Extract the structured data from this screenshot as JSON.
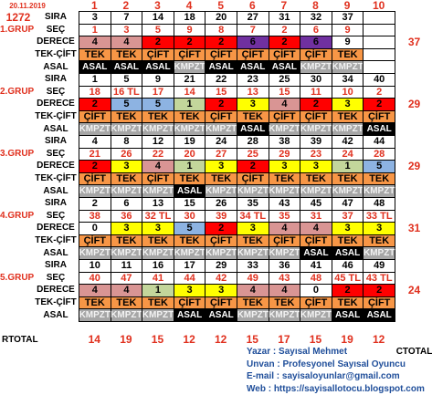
{
  "date": "20.11.2019",
  "code": "1272",
  "columns": [
    1,
    2,
    3,
    4,
    5,
    6,
    7,
    8,
    9,
    10
  ],
  "row_labels": {
    "sira": "SIRA",
    "sec": "SEÇ",
    "derece": "DERECE",
    "tek_cift": "TEK-ÇİFT",
    "asal": "ASAL"
  },
  "derece_colors": {
    "0": "#ffffff",
    "1": "#c3d69b",
    "2": "#ff0000",
    "3": "#ffff00",
    "4": "#d99594",
    "5": "#8db3e2",
    "6": "#7030a0",
    "9": "#ffffff"
  },
  "tek_cift_color": "#f79646",
  "asal_styles": {
    "ASAL": {
      "bg": "#000000",
      "fg": "#ffffff"
    },
    "KMPZT": {
      "bg": "#a6a6a6",
      "fg": "#f2f2f2"
    }
  },
  "groups": [
    {
      "label": "1.GRUP",
      "sira": [
        3,
        7,
        14,
        18,
        20,
        27,
        31,
        32,
        37
      ],
      "sec": [
        1,
        3,
        5,
        9,
        8,
        7,
        2,
        6,
        9
      ],
      "derece": [
        4,
        4,
        2,
        2,
        2,
        6,
        2,
        6,
        9
      ],
      "tek_cift": [
        "TEK",
        "TEK",
        "ÇİFT",
        "ÇİFT",
        "ÇİFT",
        "ÇİFT",
        "ÇİFT",
        "ÇİFT",
        "TEK"
      ],
      "asal": [
        "ASAL",
        "ASAL",
        "ASAL",
        "KMPZT",
        "ASAL",
        "ASAL",
        "ASAL",
        "KMPZT",
        "KMPZT"
      ],
      "total": 37
    },
    {
      "label": "2.GRUP",
      "sira": [
        1,
        5,
        9,
        21,
        22,
        23,
        25,
        30,
        34,
        40
      ],
      "sec": [
        18,
        "16 TL",
        17,
        14,
        15,
        13,
        15,
        11,
        10,
        2
      ],
      "derece": [
        2,
        5,
        5,
        1,
        2,
        3,
        4,
        2,
        3,
        2
      ],
      "tek_cift": [
        "ÇİFT",
        "TEK",
        "TEK",
        "TEK",
        "ÇİFT",
        "TEK",
        "ÇİFT",
        "ÇİFT",
        "TEK",
        "ÇİFT"
      ],
      "asal": [
        "KMPZT",
        "KMPZT",
        "KMPZT",
        "KMPZT",
        "KMPZT",
        "ASAL",
        "KMPZT",
        "KMPZT",
        "KMPZT",
        "ASAL"
      ],
      "total": 29
    },
    {
      "label": "3.GRUP",
      "sira": [
        4,
        8,
        12,
        19,
        24,
        28,
        38,
        39,
        42,
        44
      ],
      "sec": [
        21,
        26,
        22,
        20,
        27,
        25,
        29,
        23,
        24,
        28
      ],
      "derece": [
        2,
        3,
        4,
        1,
        3,
        2,
        3,
        3,
        1,
        5
      ],
      "tek_cift": [
        "ÇİFT",
        "TEK",
        "ÇİFT",
        "TEK",
        "TEK",
        "ÇİFT",
        "TEK",
        "TEK",
        "TEK",
        "TEK"
      ],
      "asal": [
        "KMPZT",
        "KMPZT",
        "KMPZT",
        "ASAL",
        "KMPZT",
        "KMPZT",
        "KMPZT",
        "KMPZT",
        "KMPZT",
        "KMPZT"
      ],
      "total": 29
    },
    {
      "label": "4.GRUP",
      "sira": [
        2,
        6,
        13,
        15,
        26,
        35,
        43,
        45,
        47,
        48
      ],
      "sec": [
        38,
        36,
        "32 TL",
        30,
        39,
        "34 TL",
        35,
        31,
        37,
        "33 TL"
      ],
      "derece": [
        0,
        3,
        3,
        5,
        2,
        3,
        4,
        4,
        3,
        3
      ],
      "tek_cift": [
        "ÇİFT",
        "TEK",
        "TEK",
        "TEK",
        "ÇİFT",
        "TEK",
        "ÇİFT",
        "ÇİFT",
        "TEK",
        "TEK"
      ],
      "asal": [
        "KMPZT",
        "KMPZT",
        "KMPZT",
        "KMPZT",
        "KMPZT",
        "KMPZT",
        "KMPZT",
        "ASAL",
        "ASAL",
        "KMPZT"
      ],
      "total": 31
    },
    {
      "label": "5.GRUP",
      "sira": [
        10,
        11,
        16,
        17,
        29,
        33,
        36,
        41,
        46,
        49
      ],
      "sec": [
        40,
        47,
        41,
        44,
        42,
        49,
        43,
        48,
        "45 TL",
        "43 TL"
      ],
      "derece": [
        4,
        4,
        1,
        3,
        3,
        4,
        4,
        0,
        2,
        2
      ],
      "tek_cift": [
        "TEK",
        "TEK",
        "TEK",
        "ÇİFT",
        "ÇİFT",
        "TEK",
        "TEK",
        "ÇİFT",
        "TEK",
        "ÇİFT"
      ],
      "asal": [
        "KMPZT",
        "KMPZT",
        "KMPZT",
        "ASAL",
        "ASAL",
        "KMPZT",
        "KMPZT",
        "KMPZT",
        "ASAL",
        "ASAL"
      ],
      "total": 24
    }
  ],
  "rtotal_label": "RTOTAL",
  "rtotal": [
    14,
    19,
    15,
    12,
    12,
    15,
    17,
    15,
    19,
    12
  ],
  "ctotal_label": "CTOTAL",
  "footer": [
    "Yazar  :  Sayısal Mehmet",
    "Unvan  :  Profesyonel Sayısal Oyuncu",
    "E-mail  :  sayisaloyunlar@gmail.com",
    "Web   :  https://sayisallotocu.blogspot.com"
  ]
}
